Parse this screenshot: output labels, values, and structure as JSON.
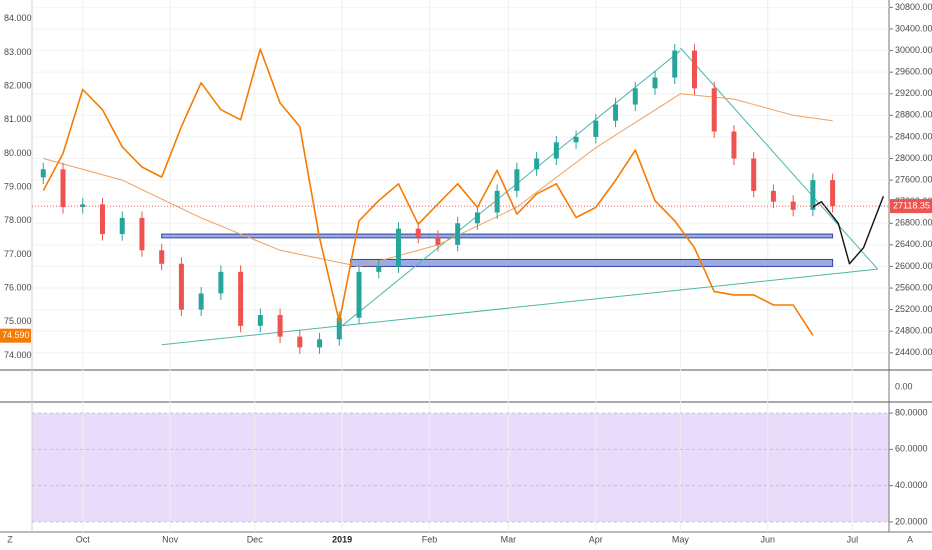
{
  "chart_data": {
    "type": "line",
    "left_axis_ticks": [
      "84.000",
      "83.000",
      "82.000",
      "81.000",
      "80.000",
      "79.000",
      "78.000",
      "77.000",
      "76.000",
      "75.000",
      "74.000"
    ],
    "left_axis_range": [
      73.6,
      84.5
    ],
    "right_axis_ticks": [
      "30800.00",
      "30400.00",
      "30000.00",
      "29600.00",
      "29200.00",
      "28800.00",
      "28400.00",
      "28000.00",
      "27600.00",
      "27200.00",
      "26800.00",
      "26400.00",
      "26000.00",
      "25600.00",
      "25200.00",
      "24800.00",
      "24400.00"
    ],
    "right_axis_range": [
      24100,
      30900
    ],
    "x_ticks": [
      {
        "label": "Oct",
        "date": "2018-10-01",
        "bold": false
      },
      {
        "label": "Nov",
        "date": "2018-11-01",
        "bold": false
      },
      {
        "label": "Dec",
        "date": "2018-12-01",
        "bold": false
      },
      {
        "label": "2019",
        "date": "2019-01-01",
        "bold": true
      },
      {
        "label": "Feb",
        "date": "2019-02-01",
        "bold": false
      },
      {
        "label": "Mar",
        "date": "2019-03-01",
        "bold": false
      },
      {
        "label": "Apr",
        "date": "2019-04-01",
        "bold": false
      },
      {
        "label": "May",
        "date": "2019-05-01",
        "bold": false
      },
      {
        "label": "Jun",
        "date": "2019-06-01",
        "bold": false
      },
      {
        "label": "Jul",
        "date": "2019-07-01",
        "bold": false
      }
    ],
    "price_badge": {
      "label": "27118.35",
      "value": 27118.35,
      "color": "#ef5350"
    },
    "left_badge": {
      "label": "74.590",
      "value": 74.59,
      "color": "#f57c00"
    },
    "candles": {
      "axis": "right",
      "up_color": "#26a69a",
      "down_color": "#ef5350",
      "close": [
        {
          "date": "2018-09-17",
          "v": 27800
        },
        {
          "date": "2018-09-24",
          "v": 27100
        },
        {
          "date": "2018-10-01",
          "v": 27150
        },
        {
          "date": "2018-10-08",
          "v": 26600
        },
        {
          "date": "2018-10-15",
          "v": 26900
        },
        {
          "date": "2018-10-22",
          "v": 26300
        },
        {
          "date": "2018-10-29",
          "v": 26050
        },
        {
          "date": "2018-11-05",
          "v": 25200
        },
        {
          "date": "2018-11-12",
          "v": 25500
        },
        {
          "date": "2018-11-19",
          "v": 25900
        },
        {
          "date": "2018-11-26",
          "v": 24900
        },
        {
          "date": "2018-12-03",
          "v": 25100
        },
        {
          "date": "2018-12-10",
          "v": 24700
        },
        {
          "date": "2018-12-17",
          "v": 24500
        },
        {
          "date": "2018-12-24",
          "v": 24650
        },
        {
          "date": "2018-12-31",
          "v": 25050
        },
        {
          "date": "2019-01-07",
          "v": 25900
        },
        {
          "date": "2019-01-14",
          "v": 26000
        },
        {
          "date": "2019-01-21",
          "v": 26700
        },
        {
          "date": "2019-01-28",
          "v": 26550
        },
        {
          "date": "2019-02-04",
          "v": 26400
        },
        {
          "date": "2019-02-11",
          "v": 26800
        },
        {
          "date": "2019-02-18",
          "v": 27000
        },
        {
          "date": "2019-02-25",
          "v": 27400
        },
        {
          "date": "2019-03-04",
          "v": 27800
        },
        {
          "date": "2019-03-11",
          "v": 28000
        },
        {
          "date": "2019-03-18",
          "v": 28300
        },
        {
          "date": "2019-03-25",
          "v": 28400
        },
        {
          "date": "2019-04-01",
          "v": 28700
        },
        {
          "date": "2019-04-08",
          "v": 29000
        },
        {
          "date": "2019-04-15",
          "v": 29300
        },
        {
          "date": "2019-04-22",
          "v": 29500
        },
        {
          "date": "2019-04-29",
          "v": 30000
        },
        {
          "date": "2019-05-06",
          "v": 29300
        },
        {
          "date": "2019-05-13",
          "v": 28500
        },
        {
          "date": "2019-05-20",
          "v": 28000
        },
        {
          "date": "2019-05-27",
          "v": 27400
        },
        {
          "date": "2019-06-03",
          "v": 27200
        },
        {
          "date": "2019-06-10",
          "v": 27050
        },
        {
          "date": "2019-06-17",
          "v": 27600
        },
        {
          "date": "2019-06-24",
          "v": 27118
        }
      ]
    },
    "orange_series": {
      "axis": "left",
      "color": "#f57c00",
      "points": [
        {
          "date": "2018-09-17",
          "v": 78.9
        },
        {
          "date": "2018-09-24",
          "v": 80.0
        },
        {
          "date": "2018-10-01",
          "v": 81.9
        },
        {
          "date": "2018-10-08",
          "v": 81.3
        },
        {
          "date": "2018-10-15",
          "v": 80.2
        },
        {
          "date": "2018-10-22",
          "v": 79.6
        },
        {
          "date": "2018-10-29",
          "v": 79.3
        },
        {
          "date": "2018-11-05",
          "v": 80.8
        },
        {
          "date": "2018-11-12",
          "v": 82.1
        },
        {
          "date": "2018-11-19",
          "v": 81.3
        },
        {
          "date": "2018-11-26",
          "v": 81.0
        },
        {
          "date": "2018-12-03",
          "v": 83.1
        },
        {
          "date": "2018-12-10",
          "v": 81.5
        },
        {
          "date": "2018-12-17",
          "v": 80.8
        },
        {
          "date": "2018-12-24",
          "v": 77.5
        },
        {
          "date": "2018-12-31",
          "v": 75.0
        },
        {
          "date": "2019-01-07",
          "v": 78.0
        },
        {
          "date": "2019-01-14",
          "v": 78.6
        },
        {
          "date": "2019-01-21",
          "v": 79.1
        },
        {
          "date": "2019-01-28",
          "v": 77.9
        },
        {
          "date": "2019-02-04",
          "v": 78.5
        },
        {
          "date": "2019-02-11",
          "v": 79.1
        },
        {
          "date": "2019-02-18",
          "v": 78.4
        },
        {
          "date": "2019-02-25",
          "v": 79.5
        },
        {
          "date": "2019-03-04",
          "v": 78.2
        },
        {
          "date": "2019-03-11",
          "v": 78.8
        },
        {
          "date": "2019-03-18",
          "v": 79.1
        },
        {
          "date": "2019-03-25",
          "v": 78.1
        },
        {
          "date": "2019-04-01",
          "v": 78.4
        },
        {
          "date": "2019-04-08",
          "v": 79.2
        },
        {
          "date": "2019-04-15",
          "v": 80.1
        },
        {
          "date": "2019-04-22",
          "v": 78.6
        },
        {
          "date": "2019-04-29",
          "v": 78.0
        },
        {
          "date": "2019-05-06",
          "v": 77.2
        },
        {
          "date": "2019-05-13",
          "v": 75.9
        },
        {
          "date": "2019-05-20",
          "v": 75.8
        },
        {
          "date": "2019-05-27",
          "v": 75.8
        },
        {
          "date": "2019-06-03",
          "v": 75.5
        },
        {
          "date": "2019-06-10",
          "v": 75.5
        },
        {
          "date": "2019-06-17",
          "v": 74.6
        }
      ]
    },
    "moving_average": {
      "axis": "right",
      "color": "#f0a060",
      "points": [
        {
          "date": "2018-09-17",
          "v": 28000
        },
        {
          "date": "2018-10-15",
          "v": 27600
        },
        {
          "date": "2018-11-12",
          "v": 26900
        },
        {
          "date": "2018-12-10",
          "v": 26300
        },
        {
          "date": "2019-01-07",
          "v": 26000
        },
        {
          "date": "2019-02-04",
          "v": 26400
        },
        {
          "date": "2019-03-04",
          "v": 27100
        },
        {
          "date": "2019-04-01",
          "v": 28200
        },
        {
          "date": "2019-05-01",
          "v": 29200
        },
        {
          "date": "2019-05-20",
          "v": 29100
        },
        {
          "date": "2019-06-10",
          "v": 28800
        },
        {
          "date": "2019-06-24",
          "v": 28700
        }
      ]
    },
    "trend_lines": {
      "color": "#4db6ac",
      "axis": "right",
      "lines": [
        {
          "from": {
            "date": "2018-10-29",
            "v": 24550
          },
          "to": {
            "date": "2019-07-10",
            "v": 25950
          }
        },
        {
          "from": {
            "date": "2019-01-01",
            "v": 24900
          },
          "to": {
            "date": "2019-05-01",
            "v": 30000
          }
        },
        {
          "from": {
            "date": "2019-05-01",
            "v": 30050
          },
          "to": {
            "date": "2019-07-10",
            "v": 25950
          }
        }
      ]
    },
    "zones": {
      "axis": "right",
      "fill": "#7c8fd8",
      "stroke": "#2f45a0",
      "boxes": [
        {
          "start": "2018-10-29",
          "end": "2019-06-24",
          "low": 26530,
          "high": 26600
        },
        {
          "start": "2019-01-04",
          "end": "2019-06-24",
          "low": 26000,
          "high": 26130
        }
      ]
    },
    "projection": {
      "axis": "right",
      "color": "#111111",
      "points": [
        {
          "date": "2019-06-17",
          "v": 27100
        },
        {
          "date": "2019-06-20",
          "v": 27200
        },
        {
          "date": "2019-06-26",
          "v": 26800
        },
        {
          "date": "2019-06-30",
          "v": 26050
        },
        {
          "date": "2019-07-05",
          "v": 26350
        },
        {
          "date": "2019-07-12",
          "v": 27300
        }
      ]
    },
    "lower_pane": {
      "axis_ticks": [
        "0.00"
      ],
      "value": 0
    },
    "rsi_pane": {
      "axis_ticks": [
        "80.0000",
        "60.0000",
        "40.0000",
        "20.0000"
      ],
      "range": [
        15,
        85
      ],
      "band": [
        20,
        80
      ],
      "band_color": "#e9dcfb"
    }
  },
  "ui": {
    "corner_left": "Z",
    "corner_right": "A"
  }
}
